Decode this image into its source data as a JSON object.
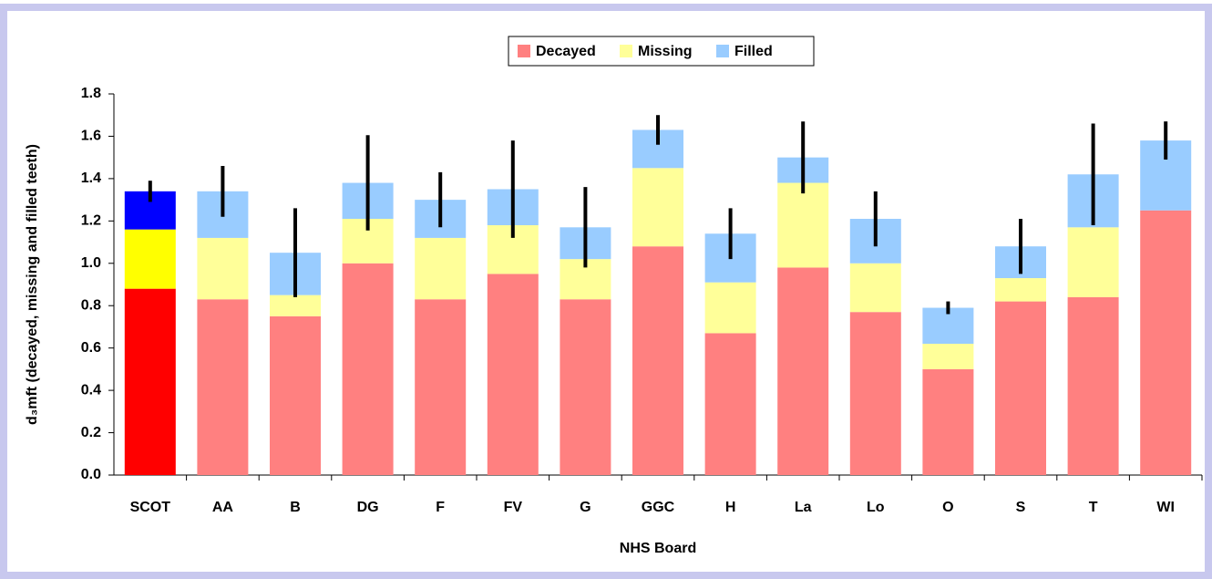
{
  "chart_data": {
    "type": "stacked_bar",
    "y_label": "d₃mft (decayed, missing and filled teeth)",
    "x_label": "NHS Board",
    "categories": [
      "SCOT",
      "AA",
      "B",
      "DG",
      "F",
      "FV",
      "G",
      "GGC",
      "H",
      "La",
      "Lo",
      "O",
      "S",
      "T",
      "WI"
    ],
    "series": [
      {
        "name": "Decayed",
        "color": "#ff8080",
        "highlight_color": "#ff0000",
        "values": [
          0.88,
          0.83,
          0.75,
          1.0,
          0.83,
          0.95,
          0.83,
          1.08,
          0.67,
          0.98,
          0.77,
          0.5,
          0.82,
          0.84,
          1.25
        ]
      },
      {
        "name": "Missing",
        "color": "#ffff99",
        "highlight_color": "#ffff00",
        "values": [
          0.28,
          0.29,
          0.1,
          0.21,
          0.29,
          0.23,
          0.19,
          0.37,
          0.24,
          0.4,
          0.23,
          0.12,
          0.11,
          0.33,
          0.0
        ]
      },
      {
        "name": "Filled",
        "color": "#99ccff",
        "highlight_color": "#0000ff",
        "values": [
          0.18,
          0.22,
          0.2,
          0.17,
          0.18,
          0.17,
          0.15,
          0.18,
          0.23,
          0.12,
          0.21,
          0.17,
          0.15,
          0.25,
          0.33
        ]
      }
    ],
    "errors": [
      0.05,
      0.12,
      0.21,
      0.225,
      0.13,
      0.23,
      0.19,
      0.07,
      0.12,
      0.17,
      0.13,
      0.03,
      0.13,
      0.24,
      0.09
    ],
    "highlight_index": 0,
    "ylim": [
      0,
      1.8
    ],
    "yticks": [
      {
        "value": 0,
        "label": "0.0"
      },
      0.2,
      0.4,
      0.6,
      0.8,
      {
        "value": 1,
        "label": "1.0"
      },
      1.2,
      1.4,
      1.6,
      1.8
    ],
    "legend": "top"
  }
}
